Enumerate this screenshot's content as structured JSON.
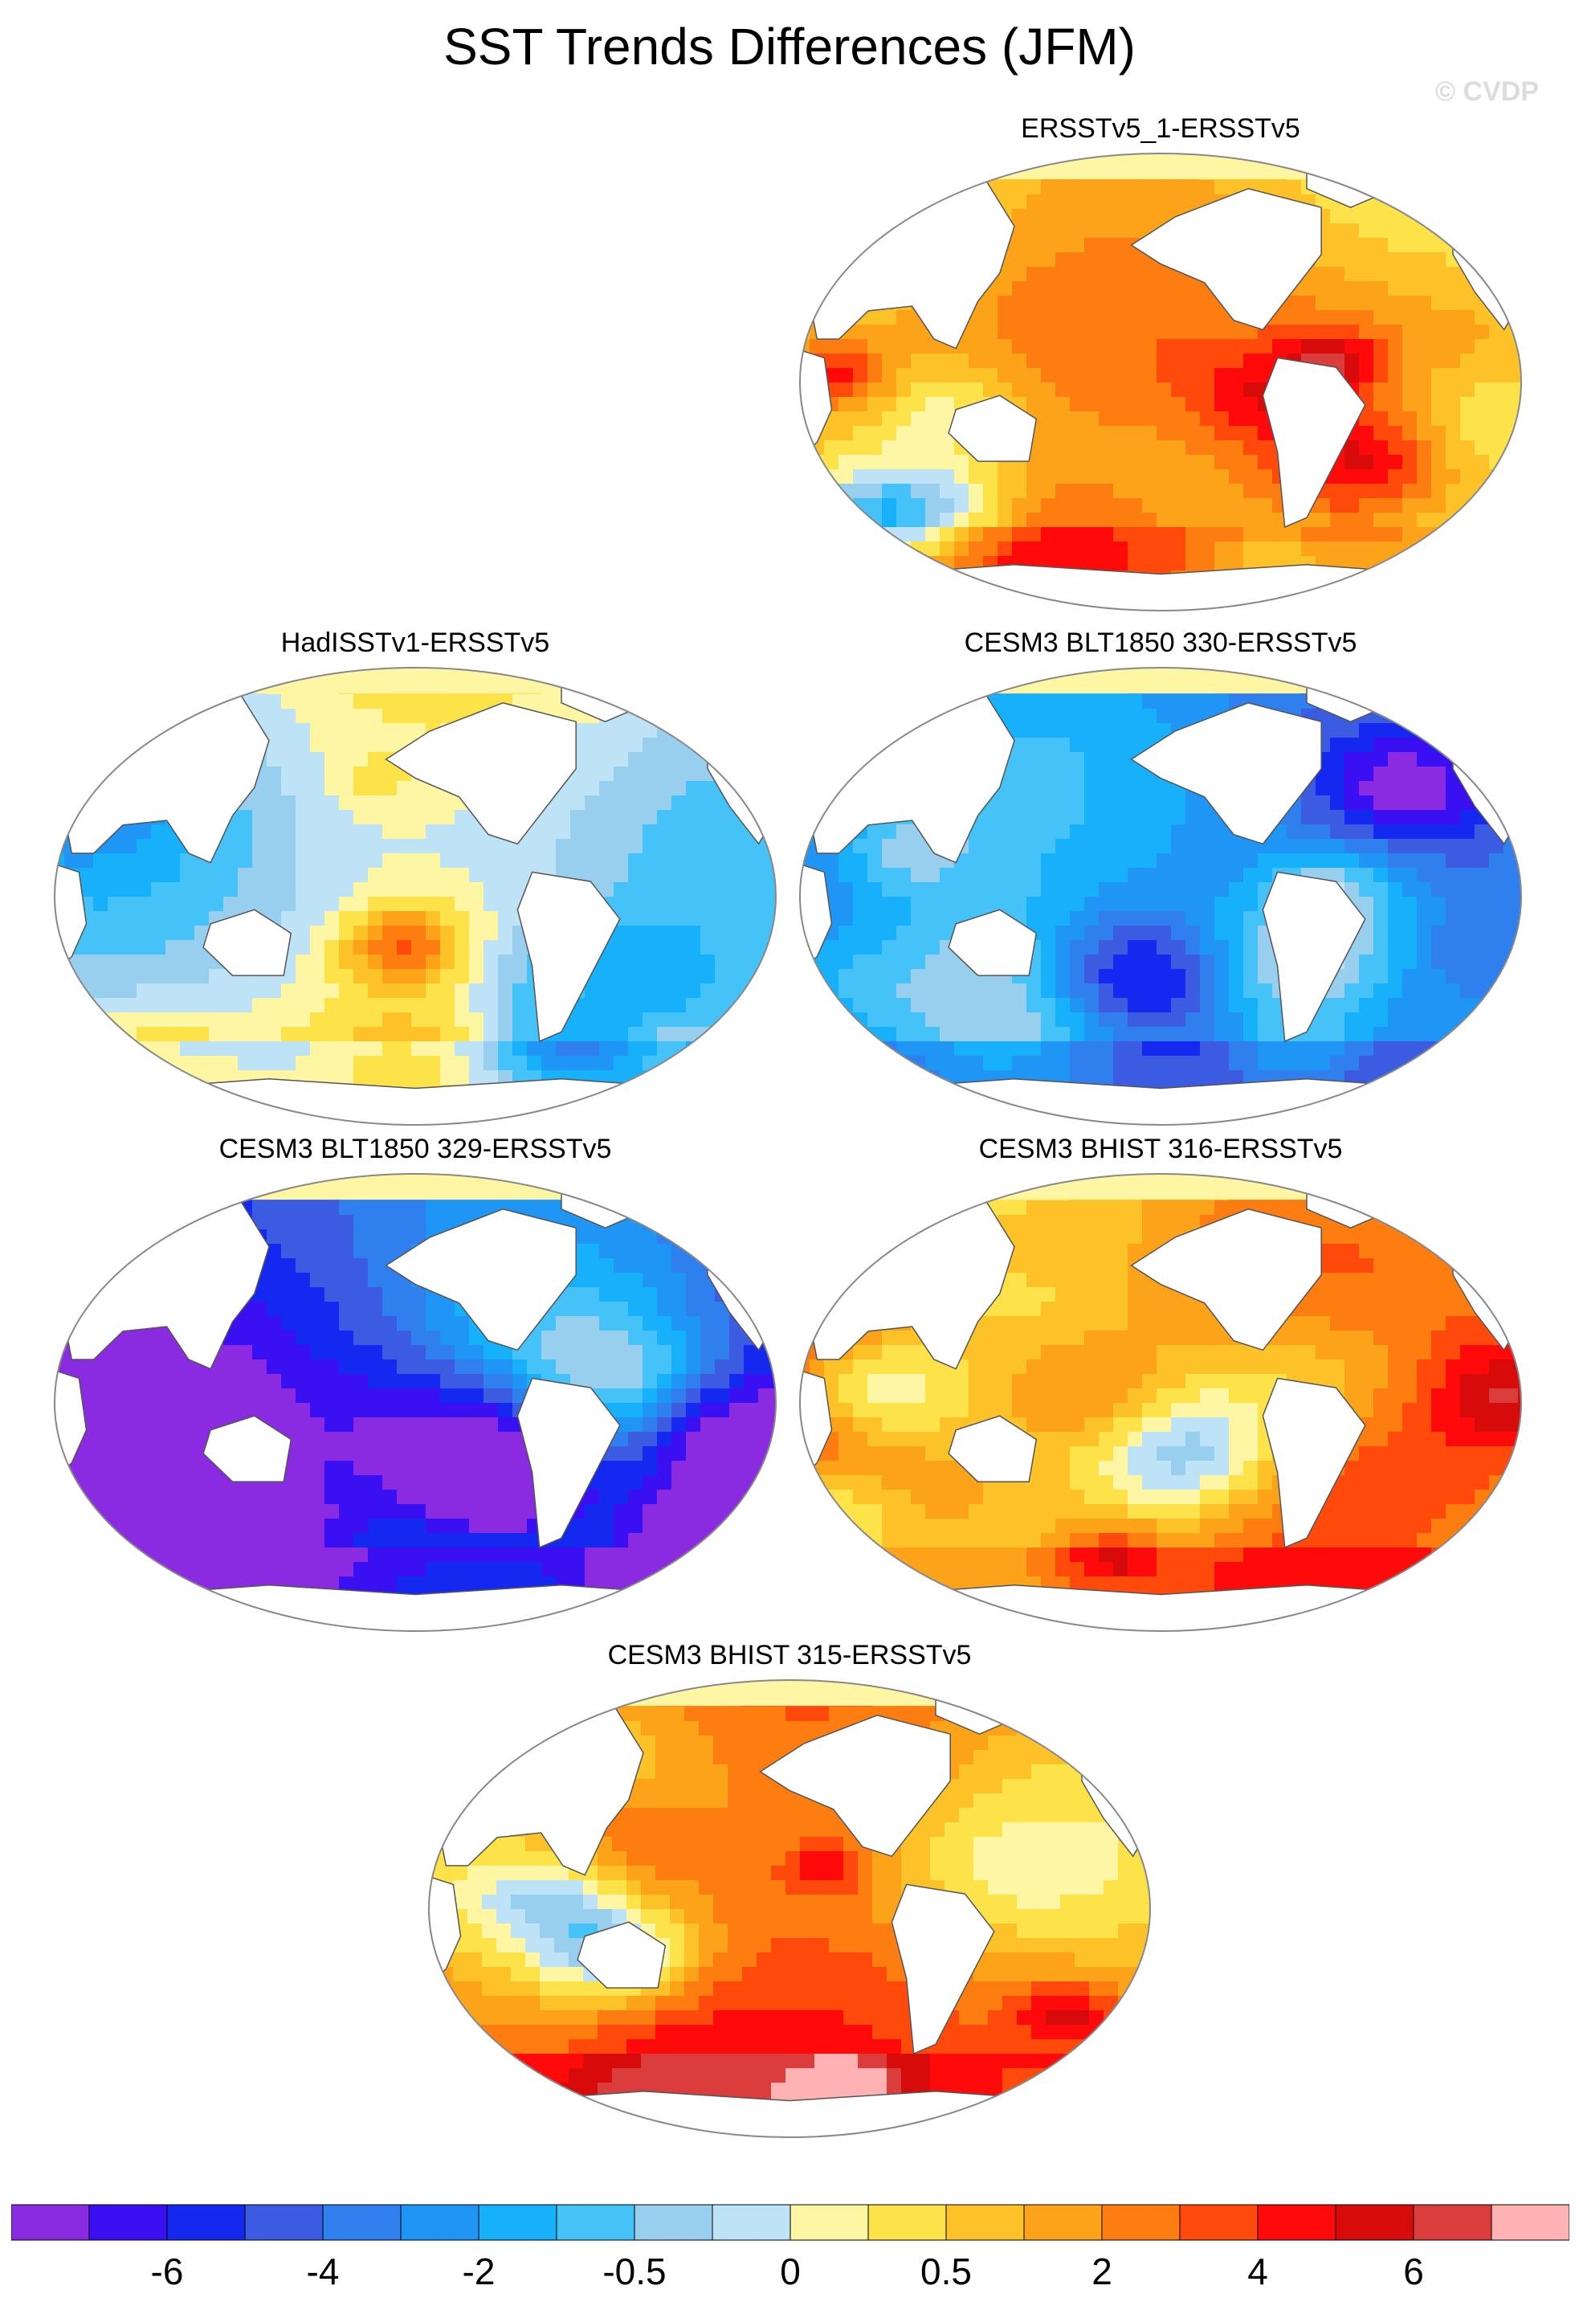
{
  "title": "SST Trends Differences (JFM)",
  "watermark": "© CVDP",
  "panels": [
    {
      "id": "p1",
      "title": "ERSSTv5_1-ERSSTv5",
      "bias": 0.7,
      "seed": 11
    },
    {
      "id": "p2",
      "title": "HadISSTv1-ERSSTv5",
      "bias": -0.1,
      "seed": 23
    },
    {
      "id": "p3",
      "title": "CESM3 BLT1850 330-ERSSTv5",
      "bias": -1.2,
      "seed": 37
    },
    {
      "id": "p4",
      "title": "CESM3 BLT1850 329-ERSSTv5",
      "bias": -1.6,
      "seed": 41
    },
    {
      "id": "p5",
      "title": "CESM3 BHIST 316-ERSSTv5",
      "bias": 1.0,
      "seed": 53
    },
    {
      "id": "p6",
      "title": "CESM3 BHIST 315-ERSSTv5",
      "bias": 0.9,
      "seed": 67
    }
  ],
  "colorbar": {
    "colors": [
      "#8a2be2",
      "#3a10f2",
      "#1428f0",
      "#3b5ce0",
      "#2f7fef",
      "#1f96f5",
      "#17b0fa",
      "#45c2f8",
      "#98cfee",
      "#bfe3f6",
      "#fff6a3",
      "#fde24a",
      "#fcc228",
      "#fca31a",
      "#fd7d11",
      "#ff4a0c",
      "#ff0a0a",
      "#d80b0b",
      "#db3d3d",
      "#ffb2b2"
    ],
    "labels": [
      "-6",
      "-4",
      "-2",
      "-0.5",
      "0",
      "0.5",
      "2",
      "4",
      "6"
    ]
  }
}
